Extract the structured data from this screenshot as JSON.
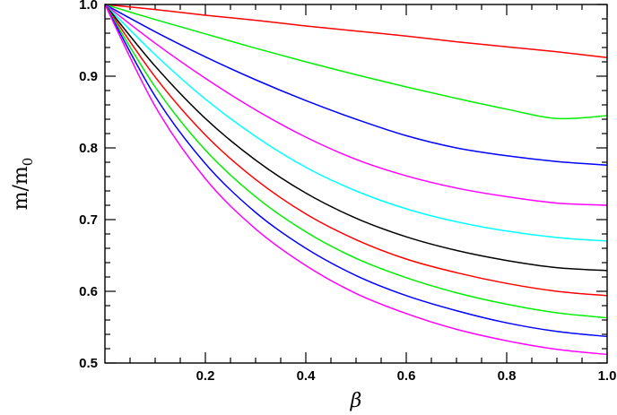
{
  "chart_data": {
    "type": "line",
    "title": "",
    "xlabel": "β",
    "ylabel": "m/m",
    "ylabel_subscript": "0",
    "xlim": [
      0.0,
      1.0
    ],
    "ylim": [
      0.5,
      1.0
    ],
    "x_ticks": [
      0.2,
      0.4,
      0.6,
      0.8,
      1.0
    ],
    "x_tick_labels": [
      "0.2",
      "0.4",
      "0.6",
      "0.8",
      "1.0"
    ],
    "y_ticks": [
      0.5,
      0.6,
      0.7,
      0.8,
      0.9,
      1.0
    ],
    "y_tick_labels": [
      "0.5",
      "0.6",
      "0.7",
      "0.8",
      "0.9",
      "1.0"
    ],
    "grid": false,
    "legend": "none",
    "x": [
      0.0,
      0.1,
      0.2,
      0.3,
      0.4,
      0.5,
      0.6,
      0.7,
      0.8,
      0.9,
      1.0
    ],
    "series": [
      {
        "color": "#ff0000",
        "values": [
          1.0,
          0.993,
          0.985,
          0.978,
          0.97,
          0.963,
          0.956,
          0.948,
          0.941,
          0.934,
          0.926
        ]
      },
      {
        "color": "#00ee00",
        "values": [
          1.0,
          0.979,
          0.959,
          0.939,
          0.92,
          0.902,
          0.885,
          0.869,
          0.854,
          0.841,
          0.845
        ]
      },
      {
        "color": "#0000ff",
        "values": [
          1.0,
          0.962,
          0.927,
          0.895,
          0.866,
          0.84,
          0.817,
          0.8,
          0.789,
          0.781,
          0.776
        ]
      },
      {
        "color": "#ff00ff",
        "values": [
          1.0,
          0.946,
          0.897,
          0.853,
          0.815,
          0.784,
          0.761,
          0.744,
          0.732,
          0.723,
          0.72
        ]
      },
      {
        "color": "#00ffff",
        "values": [
          1.0,
          0.93,
          0.868,
          0.816,
          0.773,
          0.74,
          0.715,
          0.697,
          0.684,
          0.675,
          0.67
        ]
      },
      {
        "color": "#000000",
        "values": [
          1.0,
          0.914,
          0.841,
          0.783,
          0.737,
          0.702,
          0.676,
          0.657,
          0.643,
          0.633,
          0.629
        ]
      },
      {
        "color": "#ff0000",
        "values": [
          1.0,
          0.899,
          0.818,
          0.756,
          0.708,
          0.672,
          0.645,
          0.626,
          0.611,
          0.6,
          0.594
        ]
      },
      {
        "color": "#00ee00",
        "values": [
          1.0,
          0.885,
          0.797,
          0.732,
          0.683,
          0.646,
          0.619,
          0.598,
          0.582,
          0.57,
          0.563
        ]
      },
      {
        "color": "#0000ff",
        "values": [
          1.0,
          0.872,
          0.778,
          0.71,
          0.66,
          0.622,
          0.594,
          0.573,
          0.556,
          0.544,
          0.537
        ]
      },
      {
        "color": "#ff00ff",
        "values": [
          1.0,
          0.858,
          0.757,
          0.687,
          0.636,
          0.597,
          0.569,
          0.547,
          0.531,
          0.519,
          0.512
        ]
      }
    ]
  }
}
